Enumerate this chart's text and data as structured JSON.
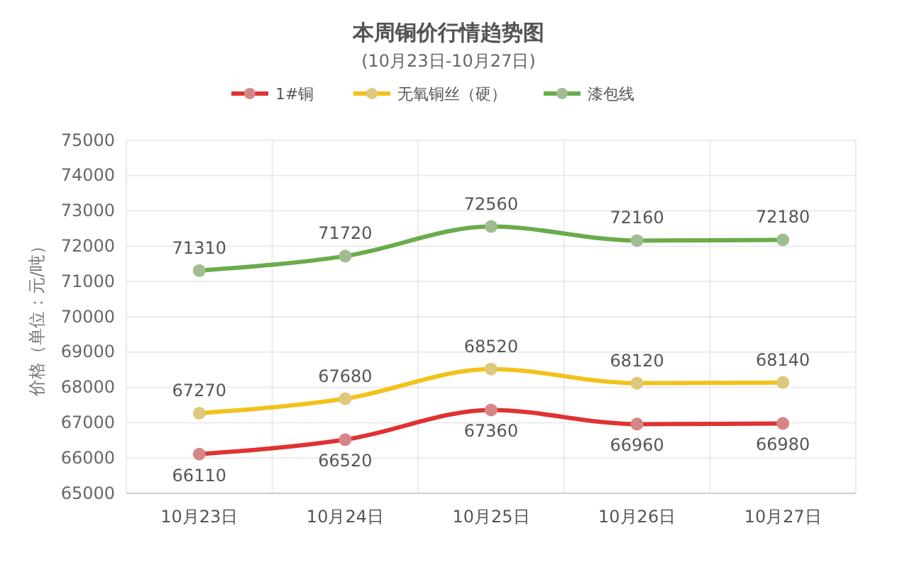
{
  "chart_data": {
    "type": "line",
    "title": "本周铜价行情趋势图",
    "subtitle": "(10月23日-10月27日)",
    "ylabel": "价格（单位：元/吨）",
    "categories": [
      "10月23日",
      "10月24日",
      "10月25日",
      "10月26日",
      "10月27日"
    ],
    "series": [
      {
        "name": "1#铜",
        "color": "#e03232",
        "values": [
          66110,
          66520,
          67360,
          66960,
          66980
        ]
      },
      {
        "name": "无氧铜丝（硬）",
        "color": "#f2c21a",
        "values": [
          67270,
          67680,
          68520,
          68120,
          68140
        ]
      },
      {
        "name": "漆包线",
        "color": "#6aab4a",
        "values": [
          71310,
          71720,
          72560,
          72160,
          72180
        ]
      }
    ],
    "ylim": [
      65000,
      75000
    ],
    "yticks": [
      65000,
      66000,
      67000,
      68000,
      69000,
      70000,
      71000,
      72000,
      73000,
      74000,
      75000
    ],
    "grid": true,
    "legend": "top",
    "marker": "circle",
    "line_style": "solid",
    "data_labels": true
  }
}
